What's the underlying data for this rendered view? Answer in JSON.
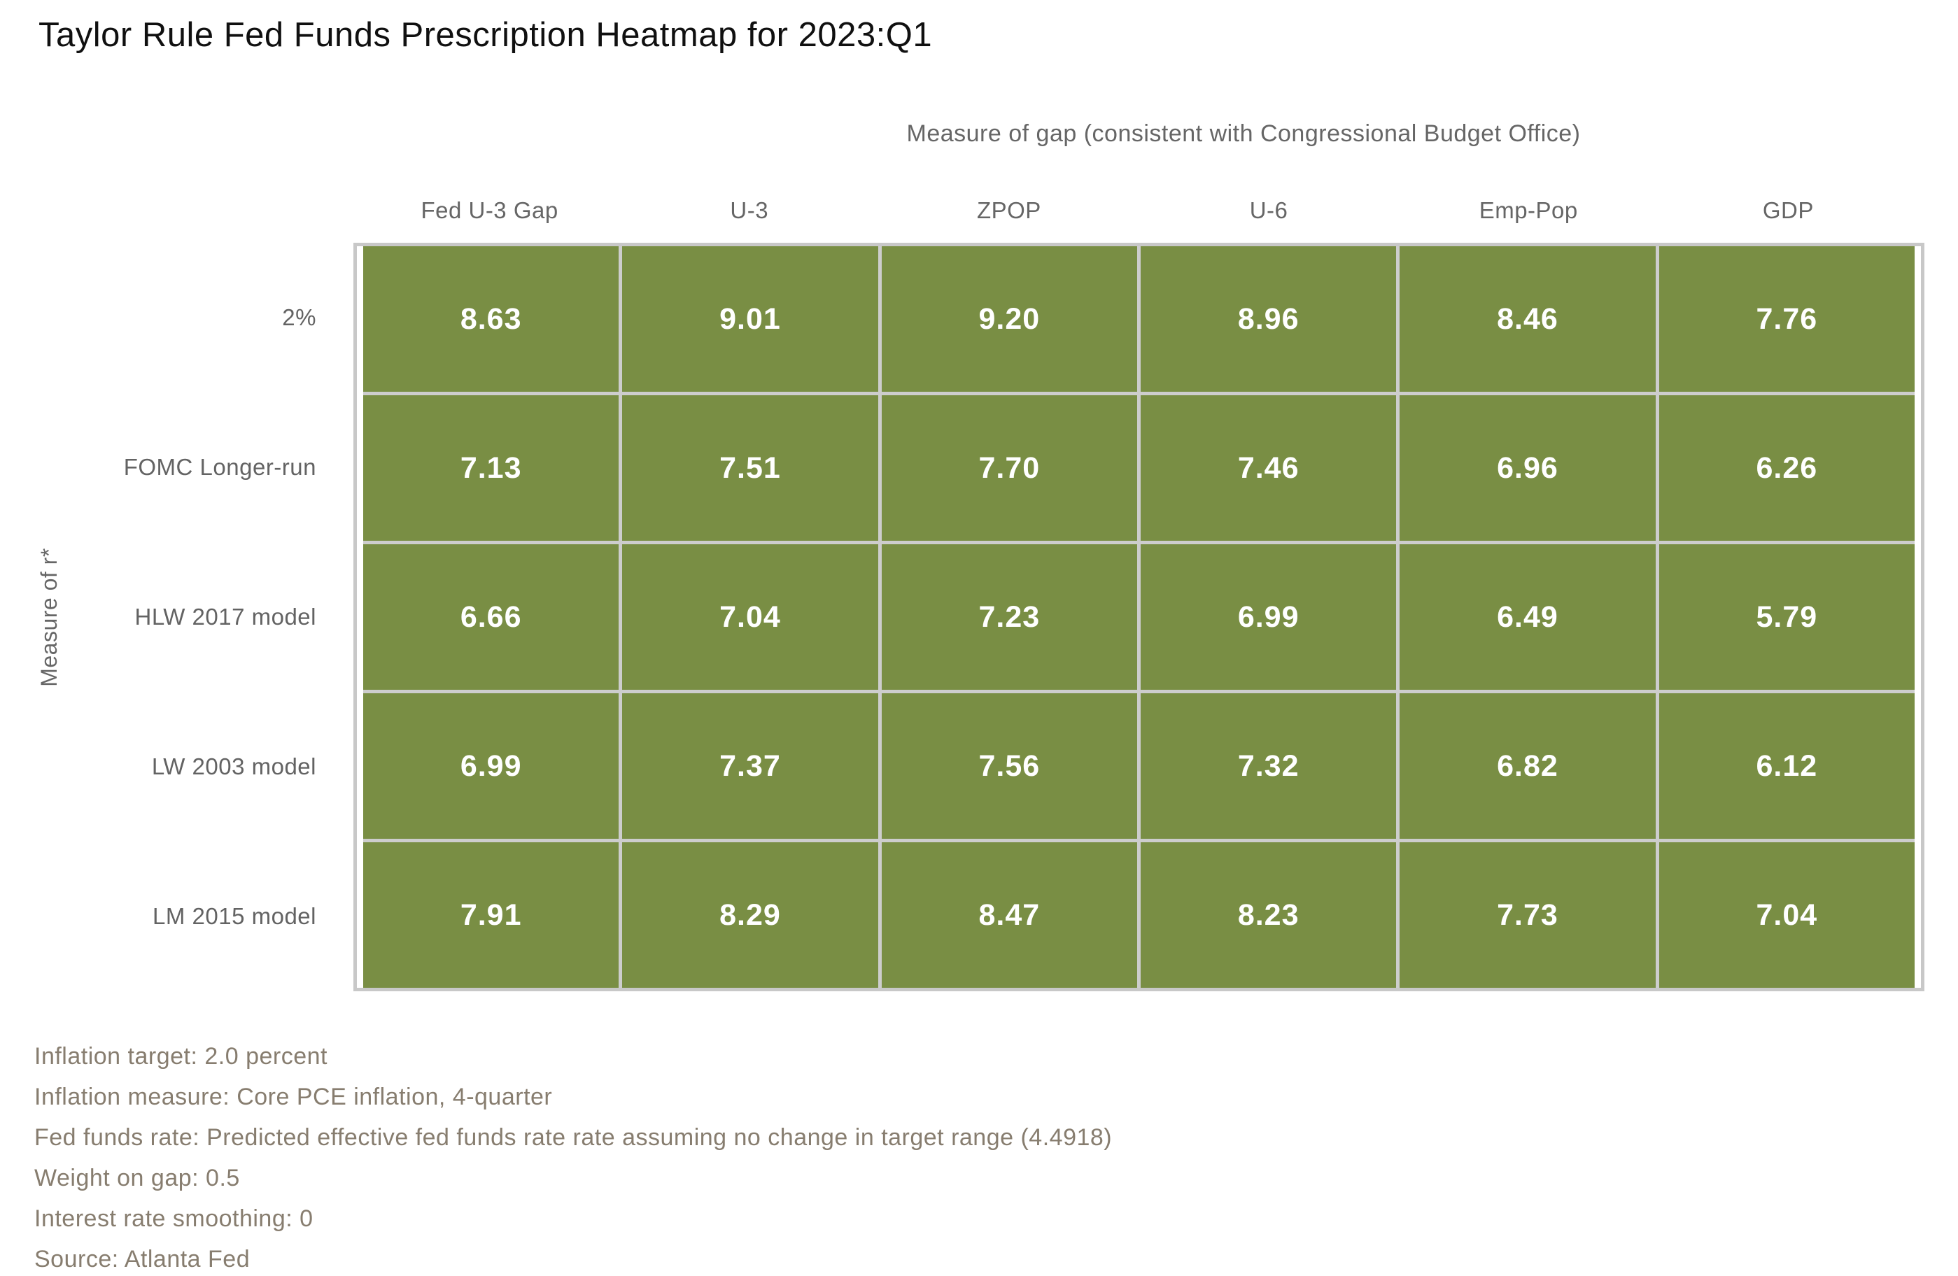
{
  "title": "Taylor Rule Fed Funds Prescription Heatmap for 2023:Q1",
  "chart_data": {
    "type": "heatmap",
    "x_axis_title": "Measure of gap (consistent with Congressional Budget Office)",
    "y_axis_title": "Measure of r*",
    "columns": [
      "Fed U-3 Gap",
      "U-3",
      "ZPOP",
      "U-6",
      "Emp-Pop",
      "GDP"
    ],
    "rows": [
      "2%",
      "FOMC Longer-run",
      "HLW 2017 model",
      "LW 2003 model",
      "LM 2015 model"
    ],
    "values": [
      [
        "8.63",
        "9.01",
        "9.20",
        "8.96",
        "8.46",
        "7.76"
      ],
      [
        "7.13",
        "7.51",
        "7.70",
        "7.46",
        "6.96",
        "6.26"
      ],
      [
        "6.66",
        "7.04",
        "7.23",
        "6.99",
        "6.49",
        "5.79"
      ],
      [
        "6.99",
        "7.37",
        "7.56",
        "7.32",
        "6.82",
        "6.12"
      ],
      [
        "7.91",
        "8.29",
        "8.47",
        "8.23",
        "7.73",
        "7.04"
      ]
    ],
    "legend": "none",
    "grid_on": true,
    "cell_color": "#798e44",
    "value_text_color": "#ffffff",
    "grid_line_color": "#c8c8c8",
    "label_color": "#666666"
  },
  "footnotes": [
    "Inflation target: 2.0 percent",
    "Inflation measure: Core PCE inflation, 4-quarter",
    "Fed funds rate: Predicted effective fed funds rate rate assuming no change in target range (4.4918)",
    "Weight on gap: 0.5",
    "Interest rate smoothing: 0",
    "Source: Atlanta Fed"
  ]
}
